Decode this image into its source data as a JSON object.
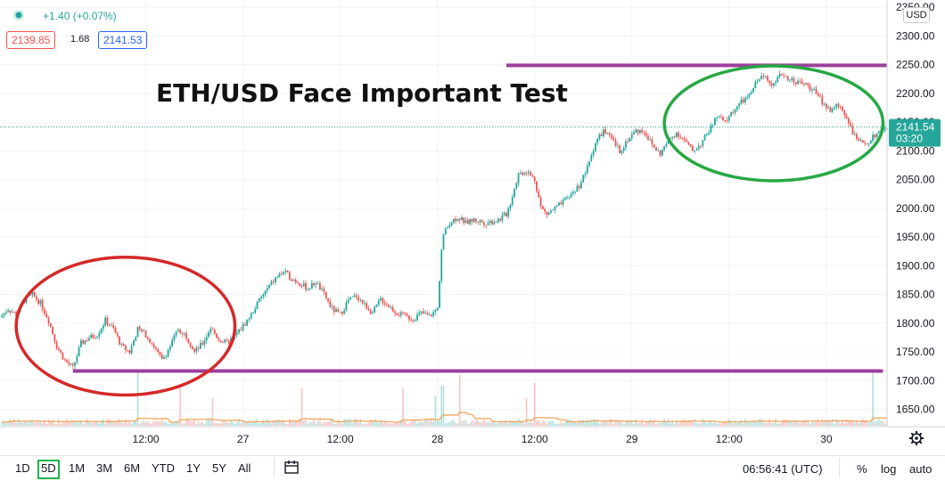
{
  "header": {
    "change": "+1.40 (+0.07%)",
    "bid": "2139.85",
    "spread": "1.68",
    "ask": "2141.53",
    "status_color": "#26a69a"
  },
  "title": "ETH/USD Face Important Test",
  "price_label": {
    "value": "2141.54",
    "countdown": "03:20",
    "color": "#26a69a"
  },
  "currency": "USD",
  "timeframes": [
    "1D",
    "5D",
    "1M",
    "3M",
    "6M",
    "YTD",
    "1Y",
    "5Y",
    "All"
  ],
  "selected_timeframe": "5D",
  "footer": {
    "time": "06:56:41 (UTC)",
    "percent": "%",
    "log": "log",
    "auto": "auto"
  },
  "chart_data": {
    "type": "candlestick",
    "y_ticks": [
      1650,
      1700,
      1750,
      1800,
      1850,
      1900,
      1950,
      2000,
      2050,
      2100,
      2150,
      2200,
      2250,
      2300,
      2350
    ],
    "y_tick_labels": [
      "1650.00",
      "1700.00",
      "1750.00",
      "1800.00",
      "1850.00",
      "1900.00",
      "1950.00",
      "2000.00",
      "2050.00",
      "2100.00",
      "2150.00",
      "2200.00",
      "2250.00",
      "2300.00",
      "2350.00"
    ],
    "ylim": [
      1620,
      2355
    ],
    "x_tick_labels": [
      "12:00",
      "27",
      "12:00",
      "28",
      "12:00",
      "29",
      "12:00",
      "30"
    ],
    "x_ticks_hours": [
      12,
      24,
      36,
      48,
      60,
      72,
      84,
      96
    ],
    "xlim_hours": [
      -6.0,
      103.5
    ],
    "last_price": 2141.54,
    "price_path": [
      [
        -6.0,
        1810
      ],
      [
        -5.0,
        1825
      ],
      [
        -4.0,
        1815
      ],
      [
        -3.0,
        1840
      ],
      [
        -2.0,
        1850
      ],
      [
        -1.0,
        1835
      ],
      [
        0.0,
        1805
      ],
      [
        1.0,
        1760
      ],
      [
        2.0,
        1735
      ],
      [
        3.0,
        1722
      ],
      [
        4.0,
        1765
      ],
      [
        5.0,
        1775
      ],
      [
        6.0,
        1780
      ],
      [
        7.0,
        1805
      ],
      [
        8.0,
        1790
      ],
      [
        9.0,
        1760
      ],
      [
        10.0,
        1750
      ],
      [
        11.0,
        1790
      ],
      [
        12.0,
        1780
      ],
      [
        13.0,
        1760
      ],
      [
        14.0,
        1735
      ],
      [
        15.0,
        1760
      ],
      [
        16.0,
        1790
      ],
      [
        17.0,
        1778
      ],
      [
        18.0,
        1750
      ],
      [
        19.0,
        1765
      ],
      [
        20.0,
        1792
      ],
      [
        21.0,
        1772
      ],
      [
        22.0,
        1765
      ],
      [
        23.0,
        1778
      ],
      [
        24.0,
        1795
      ],
      [
        25.0,
        1815
      ],
      [
        26.0,
        1840
      ],
      [
        27.0,
        1860
      ],
      [
        28.0,
        1878
      ],
      [
        29.0,
        1890
      ],
      [
        30.0,
        1878
      ],
      [
        31.0,
        1870
      ],
      [
        32.0,
        1860
      ],
      [
        33.0,
        1872
      ],
      [
        34.0,
        1850
      ],
      [
        35.0,
        1825
      ],
      [
        36.0,
        1815
      ],
      [
        37.0,
        1840
      ],
      [
        38.0,
        1848
      ],
      [
        39.0,
        1832
      ],
      [
        40.0,
        1818
      ],
      [
        41.0,
        1842
      ],
      [
        42.0,
        1830
      ],
      [
        43.0,
        1818
      ],
      [
        44.0,
        1812
      ],
      [
        45.0,
        1808
      ],
      [
        46.0,
        1818
      ],
      [
        47.0,
        1812
      ],
      [
        48.0,
        1825
      ],
      [
        48.6,
        1950
      ],
      [
        49.5,
        1975
      ],
      [
        50.5,
        1985
      ],
      [
        51.5,
        1975
      ],
      [
        52.5,
        1980
      ],
      [
        54.0,
        1975
      ],
      [
        55.5,
        1980
      ],
      [
        56.5,
        1990
      ],
      [
        57.0,
        2010
      ],
      [
        58.0,
        2060
      ],
      [
        59.0,
        2065
      ],
      [
        60.0,
        2050
      ],
      [
        60.8,
        2000
      ],
      [
        61.5,
        1990
      ],
      [
        62.5,
        2000
      ],
      [
        63.5,
        2010
      ],
      [
        64.5,
        2025
      ],
      [
        65.5,
        2040
      ],
      [
        66.5,
        2070
      ],
      [
        67.5,
        2115
      ],
      [
        68.5,
        2135
      ],
      [
        69.5,
        2120
      ],
      [
        70.5,
        2100
      ],
      [
        71.5,
        2120
      ],
      [
        72.5,
        2135
      ],
      [
        73.5,
        2135
      ],
      [
        74.5,
        2110
      ],
      [
        75.5,
        2095
      ],
      [
        76.5,
        2118
      ],
      [
        77.5,
        2132
      ],
      [
        78.5,
        2118
      ],
      [
        79.5,
        2100
      ],
      [
        80.5,
        2112
      ],
      [
        81.5,
        2135
      ],
      [
        82.5,
        2160
      ],
      [
        83.5,
        2150
      ],
      [
        84.5,
        2170
      ],
      [
        85.5,
        2185
      ],
      [
        86.5,
        2195
      ],
      [
        87.5,
        2225
      ],
      [
        88.5,
        2230
      ],
      [
        89.5,
        2215
      ],
      [
        90.5,
        2235
      ],
      [
        91.5,
        2225
      ],
      [
        92.5,
        2220
      ],
      [
        93.5,
        2215
      ],
      [
        94.5,
        2205
      ],
      [
        95.5,
        2185
      ],
      [
        96.5,
        2170
      ],
      [
        97.5,
        2180
      ],
      [
        98.5,
        2160
      ],
      [
        99.5,
        2125
      ],
      [
        100.5,
        2110
      ],
      [
        101.5,
        2120
      ],
      [
        102.5,
        2135
      ],
      [
        103.5,
        2141.54
      ]
    ],
    "support_line": {
      "from_hours": 3.0,
      "to_hours": 103.0,
      "value": 1717,
      "color": "#9c3f9c"
    },
    "resistance_line": {
      "from_hours": 56.5,
      "to_hours": 103.5,
      "value": 2249,
      "color": "#9c3f9c"
    },
    "annotations": [
      {
        "shape": "ellipse",
        "color": "#d62828",
        "center": [
          9.5,
          1795
        ],
        "rx_hours": 13.5,
        "ry_price": 120
      },
      {
        "shape": "ellipse",
        "color": "#27a844",
        "center": [
          89.5,
          2148
        ],
        "rx_hours": 13.5,
        "ry_price": 100
      }
    ],
    "grid": true,
    "volume": true
  }
}
